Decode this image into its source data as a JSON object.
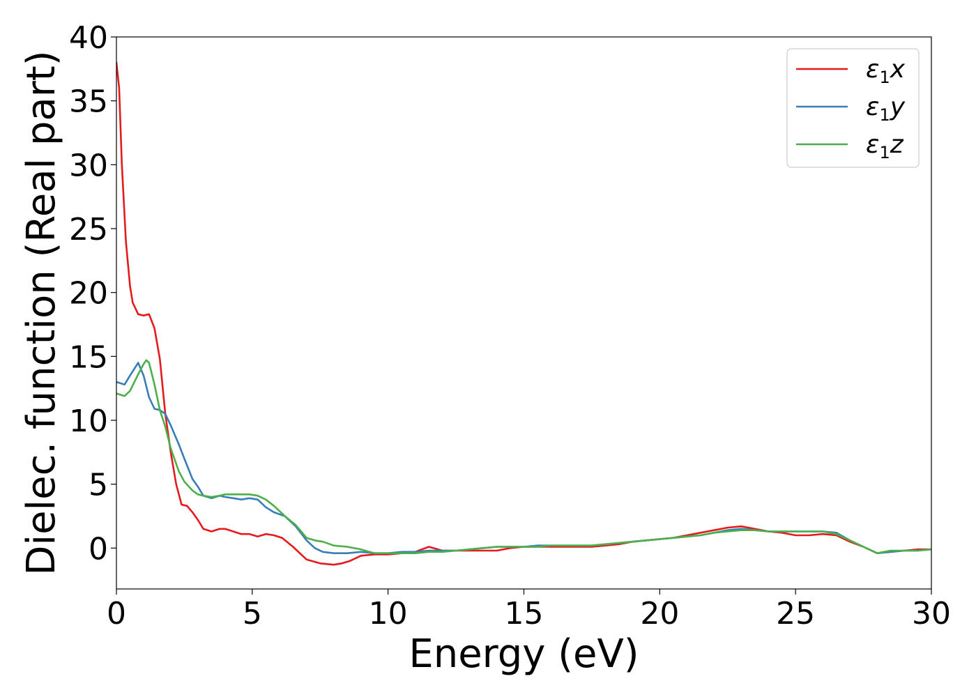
{
  "chart_data": {
    "type": "line",
    "xlabel": "Energy (eV)",
    "ylabel": "Dielec. function (Real part)",
    "xlim": [
      0,
      30
    ],
    "ylim": [
      -3.2,
      40
    ],
    "xticks": [
      0,
      5,
      10,
      15,
      20,
      25,
      30
    ],
    "yticks": [
      0,
      5,
      10,
      15,
      20,
      25,
      30,
      35,
      40
    ],
    "grid": false,
    "legend_position": "top-right",
    "series": [
      {
        "name": "ε1x",
        "symbol": "ε",
        "subscript": "1",
        "suffix": "x",
        "color": "#e41a1c",
        "x": [
          0,
          0.1,
          0.2,
          0.35,
          0.5,
          0.6,
          0.8,
          1.0,
          1.2,
          1.4,
          1.6,
          1.8,
          2.0,
          2.2,
          2.4,
          2.6,
          2.8,
          3.0,
          3.2,
          3.5,
          3.8,
          4.0,
          4.3,
          4.6,
          4.9,
          5.2,
          5.5,
          5.8,
          6.1,
          6.5,
          7.0,
          7.5,
          8.0,
          8.3,
          8.6,
          9.0,
          9.5,
          10.0,
          10.5,
          11.0,
          11.5,
          12.0,
          12.5,
          13.0,
          13.5,
          14.0,
          14.5,
          15.0,
          15.5,
          16.0,
          16.5,
          17.0,
          17.5,
          18.0,
          18.5,
          19.0,
          19.5,
          20.0,
          20.5,
          21.0,
          21.5,
          22.0,
          22.5,
          23.0,
          23.5,
          24.0,
          24.5,
          25.0,
          25.5,
          26.0,
          26.5,
          27.0,
          27.5,
          28.0,
          28.5,
          29.0,
          29.5,
          30.0
        ],
        "y": [
          38,
          36,
          30,
          24,
          20.5,
          19.2,
          18.3,
          18.2,
          18.3,
          17.2,
          14.8,
          10.5,
          7.5,
          5.0,
          3.4,
          3.3,
          2.8,
          2.2,
          1.5,
          1.3,
          1.5,
          1.5,
          1.3,
          1.1,
          1.1,
          0.9,
          1.1,
          1.0,
          0.8,
          0.1,
          -0.9,
          -1.2,
          -1.3,
          -1.2,
          -1.0,
          -0.6,
          -0.5,
          -0.5,
          -0.4,
          -0.3,
          0.1,
          -0.2,
          -0.2,
          -0.2,
          -0.2,
          -0.2,
          0.0,
          0.1,
          0.1,
          0.1,
          0.1,
          0.1,
          0.1,
          0.2,
          0.3,
          0.5,
          0.6,
          0.7,
          0.8,
          1.0,
          1.2,
          1.4,
          1.6,
          1.7,
          1.5,
          1.3,
          1.2,
          1.0,
          1.0,
          1.1,
          1.0,
          0.5,
          0.1,
          -0.4,
          -0.3,
          -0.2,
          -0.1,
          -0.1
        ]
      },
      {
        "name": "ε1y",
        "symbol": "ε",
        "subscript": "1",
        "suffix": "y",
        "color": "#377eb8",
        "x": [
          0,
          0.3,
          0.5,
          0.8,
          1.0,
          1.2,
          1.4,
          1.6,
          1.8,
          2.0,
          2.3,
          2.5,
          2.8,
          3.0,
          3.2,
          3.5,
          3.8,
          4.0,
          4.3,
          4.6,
          4.9,
          5.2,
          5.5,
          5.8,
          6.2,
          6.6,
          7.0,
          7.3,
          7.6,
          8.0,
          8.5,
          9.0,
          9.5,
          10.0,
          10.5,
          11.0,
          11.5,
          12.0,
          12.5,
          13.0,
          13.5,
          14.0,
          14.5,
          15.0,
          15.5,
          16.0,
          16.5,
          17.0,
          17.5,
          18.0,
          18.5,
          19.0,
          19.5,
          20.0,
          20.5,
          21.0,
          21.5,
          22.0,
          22.5,
          23.0,
          23.5,
          24.0,
          24.5,
          25.0,
          25.5,
          26.0,
          26.5,
          27.0,
          27.5,
          28.0,
          28.5,
          29.0,
          29.5,
          30.0
        ],
        "y": [
          13.0,
          12.8,
          13.5,
          14.5,
          13.5,
          11.8,
          10.9,
          10.8,
          10.5,
          9.6,
          8.1,
          7.0,
          5.4,
          4.8,
          4.1,
          3.9,
          4.1,
          4.0,
          3.9,
          3.8,
          3.9,
          3.8,
          3.2,
          2.8,
          2.5,
          1.7,
          0.6,
          0.0,
          -0.3,
          -0.4,
          -0.4,
          -0.3,
          -0.4,
          -0.4,
          -0.3,
          -0.3,
          -0.2,
          -0.2,
          -0.2,
          -0.1,
          0.0,
          0.1,
          0.1,
          0.1,
          0.2,
          0.2,
          0.2,
          0.2,
          0.2,
          0.3,
          0.4,
          0.5,
          0.6,
          0.7,
          0.8,
          0.9,
          1.0,
          1.2,
          1.4,
          1.5,
          1.4,
          1.3,
          1.3,
          1.3,
          1.3,
          1.3,
          1.2,
          0.6,
          0.1,
          -0.4,
          -0.3,
          -0.2,
          -0.2,
          -0.1
        ]
      },
      {
        "name": "ε1z",
        "symbol": "ε",
        "subscript": "1",
        "suffix": "z",
        "color": "#4daf4a",
        "x": [
          0,
          0.3,
          0.5,
          0.8,
          1.0,
          1.1,
          1.2,
          1.4,
          1.6,
          1.8,
          2.0,
          2.3,
          2.5,
          2.8,
          3.0,
          3.2,
          3.5,
          3.8,
          4.0,
          4.3,
          4.6,
          4.9,
          5.2,
          5.5,
          5.8,
          6.2,
          6.6,
          7.0,
          7.3,
          7.6,
          8.0,
          8.5,
          9.0,
          9.5,
          10.0,
          10.5,
          11.0,
          11.5,
          12.0,
          12.5,
          13.0,
          13.5,
          14.0,
          14.5,
          15.0,
          15.5,
          16.0,
          16.5,
          17.0,
          17.5,
          18.0,
          18.5,
          19.0,
          19.5,
          20.0,
          20.5,
          21.0,
          21.5,
          22.0,
          22.5,
          23.0,
          23.5,
          24.0,
          24.5,
          25.0,
          25.5,
          26.0,
          26.5,
          27.0,
          27.5,
          28.0,
          28.5,
          29.0,
          29.5,
          30.0
        ],
        "y": [
          12.1,
          11.9,
          12.3,
          13.6,
          14.4,
          14.7,
          14.5,
          12.8,
          10.8,
          9.5,
          7.8,
          6.0,
          5.2,
          4.5,
          4.2,
          4.1,
          4.0,
          4.1,
          4.2,
          4.2,
          4.2,
          4.2,
          4.1,
          3.8,
          3.3,
          2.5,
          1.8,
          0.8,
          0.6,
          0.5,
          0.2,
          0.1,
          -0.1,
          -0.4,
          -0.4,
          -0.4,
          -0.4,
          -0.3,
          -0.3,
          -0.2,
          -0.1,
          0.0,
          0.1,
          0.1,
          0.1,
          0.1,
          0.2,
          0.2,
          0.2,
          0.2,
          0.3,
          0.4,
          0.5,
          0.6,
          0.7,
          0.8,
          0.9,
          1.0,
          1.2,
          1.3,
          1.4,
          1.4,
          1.3,
          1.3,
          1.3,
          1.3,
          1.3,
          1.1,
          0.6,
          0.1,
          -0.4,
          -0.2,
          -0.2,
          -0.2,
          -0.1
        ]
      }
    ]
  }
}
